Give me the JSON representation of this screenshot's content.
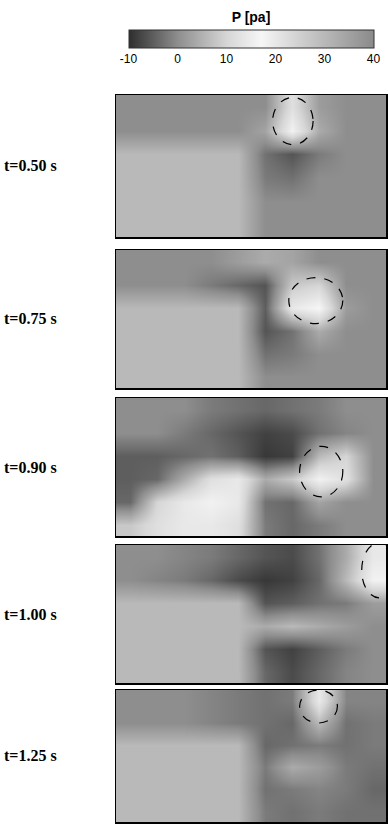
{
  "chart_data": {
    "type": "heatmap",
    "tick_labels": false,
    "colorbar": {
      "title": "P [pa]",
      "range": [
        -10,
        40
      ],
      "ticks": [
        -10,
        0,
        10,
        20,
        30,
        40
      ]
    },
    "panels": [
      {
        "label": "t=0.50 s",
        "cells": [
          [
            0,
            0,
            0,
            0,
            0,
            0,
            12,
            2,
            0,
            0
          ],
          [
            0,
            0,
            0,
            0,
            0,
            3,
            16,
            4,
            0,
            0
          ],
          [
            6,
            6,
            6,
            6,
            6,
            -3,
            -6,
            -2,
            0,
            0
          ],
          [
            6,
            6,
            6,
            6,
            6,
            -2,
            -3,
            0,
            0,
            0
          ],
          [
            6,
            6,
            6,
            6,
            6,
            0,
            0,
            0,
            0,
            0
          ],
          [
            6,
            6,
            6,
            6,
            6,
            0,
            0,
            0,
            0,
            0
          ]
        ]
      },
      {
        "label": "t=0.75 s",
        "cells": [
          [
            0,
            0,
            0,
            0,
            2,
            4,
            3,
            0,
            0,
            0
          ],
          [
            0,
            0,
            0,
            -2,
            -4,
            -6,
            8,
            10,
            0,
            0
          ],
          [
            6,
            6,
            6,
            6,
            6,
            -5,
            14,
            17,
            2,
            0
          ],
          [
            6,
            6,
            6,
            6,
            6,
            -6,
            -3,
            4,
            0,
            0
          ],
          [
            6,
            6,
            6,
            6,
            6,
            -3,
            -2,
            0,
            0,
            0
          ],
          [
            6,
            6,
            6,
            6,
            6,
            0,
            0,
            0,
            0,
            0
          ]
        ]
      },
      {
        "label": "t=0.90 s",
        "cells": [
          [
            0,
            0,
            0,
            -2,
            -3,
            -4,
            -3,
            -2,
            0,
            0
          ],
          [
            0,
            0,
            -2,
            -4,
            -6,
            -8,
            -7,
            -3,
            -1,
            0
          ],
          [
            -5,
            -5,
            -4,
            -3,
            -5,
            -9,
            -8,
            6,
            10,
            0
          ],
          [
            -5,
            -4,
            4,
            12,
            14,
            4,
            8,
            16,
            12,
            0
          ],
          [
            -4,
            10,
            14,
            16,
            14,
            -3,
            -4,
            3,
            0,
            0
          ],
          [
            8,
            12,
            14,
            14,
            12,
            -2,
            -4,
            -2,
            0,
            0
          ]
        ]
      },
      {
        "label": "t=1.00 s",
        "cells": [
          [
            0,
            0,
            -1,
            -2,
            -4,
            -6,
            -7,
            -3,
            4,
            14
          ],
          [
            0,
            -1,
            -2,
            -4,
            -7,
            -9,
            -8,
            -4,
            6,
            16
          ],
          [
            6,
            6,
            6,
            6,
            6,
            -6,
            -5,
            -3,
            -2,
            2
          ],
          [
            6,
            6,
            6,
            6,
            6,
            4,
            6,
            4,
            2,
            0
          ],
          [
            6,
            6,
            6,
            6,
            6,
            -6,
            -8,
            -5,
            -2,
            0
          ],
          [
            6,
            6,
            6,
            6,
            6,
            -4,
            -7,
            -4,
            -1,
            0
          ]
        ]
      },
      {
        "label": "t=1.25 s",
        "cells": [
          [
            0,
            0,
            0,
            -1,
            -2,
            -3,
            -2,
            14,
            -1,
            -1
          ],
          [
            0,
            0,
            0,
            -1,
            -2,
            -3,
            -4,
            6,
            -3,
            -2
          ],
          [
            6,
            6,
            6,
            6,
            6,
            -4,
            -3,
            -2,
            -3,
            -2
          ],
          [
            6,
            6,
            6,
            6,
            6,
            -2,
            4,
            2,
            -2,
            -3
          ],
          [
            6,
            6,
            6,
            6,
            6,
            -3,
            -2,
            -1,
            -2,
            -4
          ],
          [
            6,
            6,
            6,
            6,
            6,
            -2,
            -3,
            -2,
            -3,
            -3
          ]
        ]
      }
    ]
  }
}
